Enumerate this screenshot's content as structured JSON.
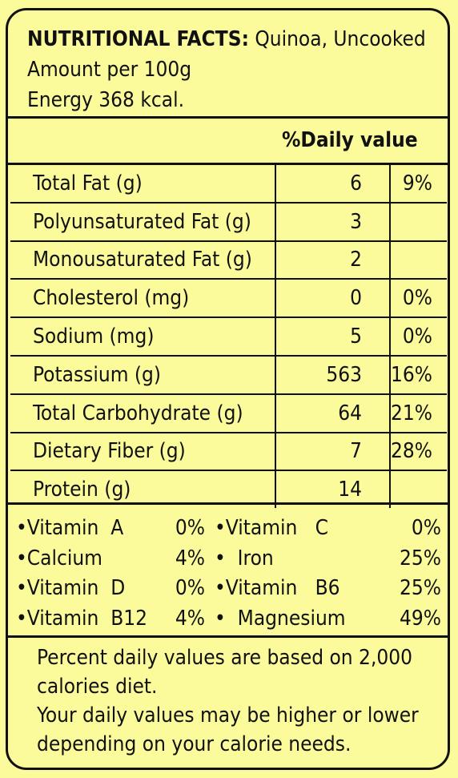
{
  "header": {
    "title_bold": "NUTRITIONAL FACTS:",
    "title_rest": " Quinoa, Uncooked",
    "amount": "Amount per 100g",
    "energy": "Energy 368 kcal."
  },
  "daily_value_heading": "%Daily value",
  "nutrients": [
    {
      "name": "Total Fat (g)",
      "amount": "6",
      "pct": "9%"
    },
    {
      "name": "Polyunsaturated Fat (g)",
      "amount": "3",
      "pct": ""
    },
    {
      "name": "Monousaturated Fat (g)",
      "amount": "2",
      "pct": ""
    },
    {
      "name": "Cholesterol (mg)",
      "amount": "0",
      "pct": "0%"
    },
    {
      "name": "Sodium (mg)",
      "amount": "5",
      "pct": "0%"
    },
    {
      "name": "Potassium (g)",
      "amount": "563",
      "pct": "16%"
    },
    {
      "name": "Total Carbohydrate (g)",
      "amount": "64",
      "pct": "21%"
    },
    {
      "name": "Dietary Fiber (g)",
      "amount": "7",
      "pct": "28%"
    },
    {
      "name": "Protein (g)",
      "amount": "14",
      "pct": ""
    }
  ],
  "vitamins_left": [
    {
      "label": "•Vitamin  A",
      "value": "0%"
    },
    {
      "label": "•Calcium",
      "value": "4%"
    },
    {
      "label": "•Vitamin  D",
      "value": "0%"
    },
    {
      "label": "•Vitamin  B12",
      "value": "4%"
    }
  ],
  "vitamins_right": [
    {
      "label": "•Vitamin   C",
      "value": "0%"
    },
    {
      "label": "•  Iron",
      "value": "25%"
    },
    {
      "label": "•Vitamin   B6",
      "value": "25%"
    },
    {
      "label": "•  Magnesium",
      "value": "49%"
    }
  ],
  "footer": {
    "line1": "Percent daily values are based on 2,000 calories diet.",
    "line2": "Your daily values may be higher or lower depending on your calorie needs."
  }
}
